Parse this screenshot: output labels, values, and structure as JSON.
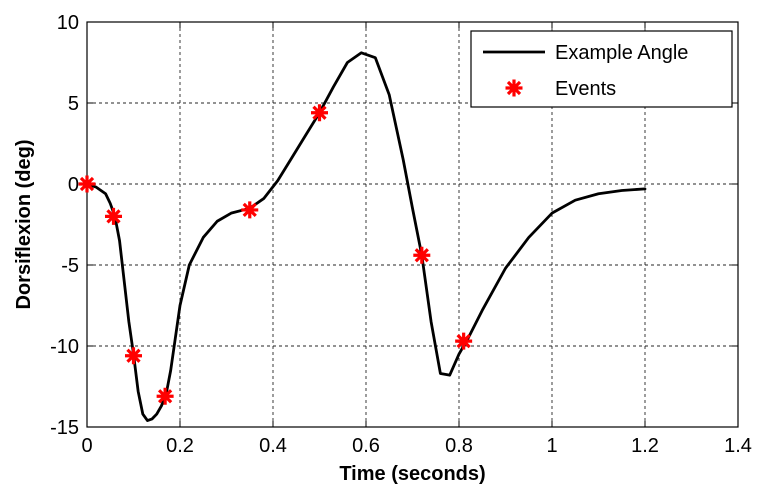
{
  "chart_data": {
    "type": "line",
    "title": "",
    "xlabel": "Time (seconds)",
    "ylabel": "Dorsiflexion (deg)",
    "xlim": [
      0,
      1.4
    ],
    "ylim": [
      -15,
      10
    ],
    "x_ticks": [
      0,
      0.2,
      0.4,
      0.6,
      0.8,
      1,
      1.2,
      1.4
    ],
    "x_tick_labels": [
      "0",
      "0.2",
      "0.4",
      "0.6",
      "0.8",
      "1",
      "1.2",
      "1.4"
    ],
    "y_ticks": [
      -15,
      -10,
      -5,
      0,
      5,
      10
    ],
    "y_tick_labels": [
      "-15",
      "-10",
      "-5",
      "0",
      "5",
      "10"
    ],
    "grid": true,
    "legend_position": "top-right",
    "series": [
      {
        "name": "Example Angle",
        "style": "line",
        "color": "#000000",
        "x": [
          0,
          0.02,
          0.04,
          0.05,
          0.06,
          0.07,
          0.08,
          0.09,
          0.1,
          0.11,
          0.12,
          0.13,
          0.14,
          0.15,
          0.16,
          0.17,
          0.18,
          0.19,
          0.2,
          0.22,
          0.25,
          0.28,
          0.31,
          0.35,
          0.38,
          0.41,
          0.44,
          0.47,
          0.5,
          0.53,
          0.56,
          0.59,
          0.62,
          0.65,
          0.68,
          0.7,
          0.72,
          0.74,
          0.76,
          0.78,
          0.8,
          0.82,
          0.85,
          0.9,
          0.95,
          1.0,
          1.05,
          1.1,
          1.15,
          1.2
        ],
        "y": [
          0,
          -0.2,
          -0.6,
          -1.2,
          -2.0,
          -3.5,
          -6.0,
          -8.5,
          -10.5,
          -12.8,
          -14.2,
          -14.6,
          -14.5,
          -14.2,
          -13.7,
          -13.0,
          -11.5,
          -9.5,
          -7.5,
          -5.0,
          -3.3,
          -2.3,
          -1.8,
          -1.5,
          -0.9,
          0.2,
          1.6,
          3.0,
          4.4,
          6.0,
          7.5,
          8.1,
          7.8,
          5.5,
          1.5,
          -1.5,
          -4.4,
          -8.5,
          -11.7,
          -11.8,
          -10.5,
          -9.5,
          -7.8,
          -5.2,
          -3.3,
          -1.8,
          -1.0,
          -0.6,
          -0.4,
          -0.3
        ]
      },
      {
        "name": "Events",
        "style": "marker",
        "marker": "*",
        "color": "#ff0000",
        "x": [
          0,
          0.057,
          0.1,
          0.168,
          0.35,
          0.5,
          0.72,
          0.81
        ],
        "y": [
          0,
          -2.0,
          -10.6,
          -13.1,
          -1.6,
          4.4,
          -4.4,
          -9.7
        ]
      }
    ]
  }
}
